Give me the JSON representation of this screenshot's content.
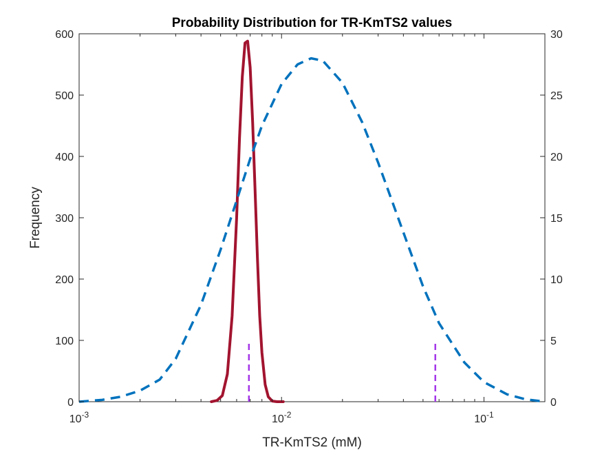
{
  "chart_data": {
    "type": "line",
    "title": "Probability Distribution for TR-KmTS2 values",
    "xlabel": "TR-KmTS2 (mM)",
    "ylabel": "Frequency",
    "x_scale": "log",
    "xlim": [
      0.001,
      0.2
    ],
    "ylim_left": [
      0,
      600
    ],
    "ylim_right": [
      0,
      30
    ],
    "grid": false,
    "legend": "none",
    "x_ticks": [
      {
        "base": "10",
        "exp": "-3",
        "value": 0.001
      },
      {
        "base": "10",
        "exp": "-2",
        "value": 0.01
      },
      {
        "base": "10",
        "exp": "-1",
        "value": 0.1
      }
    ],
    "y_ticks_left": [
      "0",
      "100",
      "200",
      "300",
      "400",
      "500",
      "600"
    ],
    "y_ticks_right": [
      "0",
      "5",
      "10",
      "15",
      "20",
      "25",
      "30"
    ],
    "series": [
      {
        "axis": "left",
        "style": "solid",
        "color": "#A2142F",
        "x": [
          0.0045,
          0.0048,
          0.0051,
          0.0054,
          0.0057,
          0.006,
          0.0062,
          0.0064,
          0.0066,
          0.0068,
          0.007,
          0.0072,
          0.0074,
          0.0076,
          0.0078,
          0.008,
          0.0083,
          0.0086,
          0.009,
          0.0095,
          0.0102
        ],
        "y": [
          0,
          2,
          10,
          45,
          140,
          300,
          430,
          530,
          585,
          588,
          545,
          455,
          345,
          235,
          140,
          80,
          28,
          8,
          1,
          0,
          0
        ]
      },
      {
        "axis": "right",
        "style": "dashed",
        "color": "#0072BD",
        "x": [
          0.001,
          0.0013,
          0.0016,
          0.002,
          0.0025,
          0.003,
          0.004,
          0.005,
          0.006,
          0.007,
          0.008,
          0.01,
          0.012,
          0.014,
          0.016,
          0.02,
          0.025,
          0.03,
          0.04,
          0.05,
          0.06,
          0.08,
          0.1,
          0.13,
          0.16,
          0.2
        ],
        "y": [
          0.0,
          0.15,
          0.4,
          0.9,
          1.8,
          3.5,
          7.9,
          12.4,
          16.4,
          19.8,
          22.5,
          25.9,
          27.5,
          28.0,
          27.8,
          26.0,
          22.8,
          19.5,
          13.8,
          9.4,
          6.4,
          3.2,
          1.6,
          0.6,
          0.2,
          0.0
        ]
      },
      {
        "axis": "left",
        "style": "dashed",
        "color": "#A335E8",
        "type": "vline",
        "x": 0.0069,
        "y": [
          0,
          100
        ]
      },
      {
        "axis": "left",
        "style": "dashed",
        "color": "#A335E8",
        "type": "vline",
        "x": 0.0575,
        "y": [
          0,
          100
        ]
      }
    ]
  }
}
